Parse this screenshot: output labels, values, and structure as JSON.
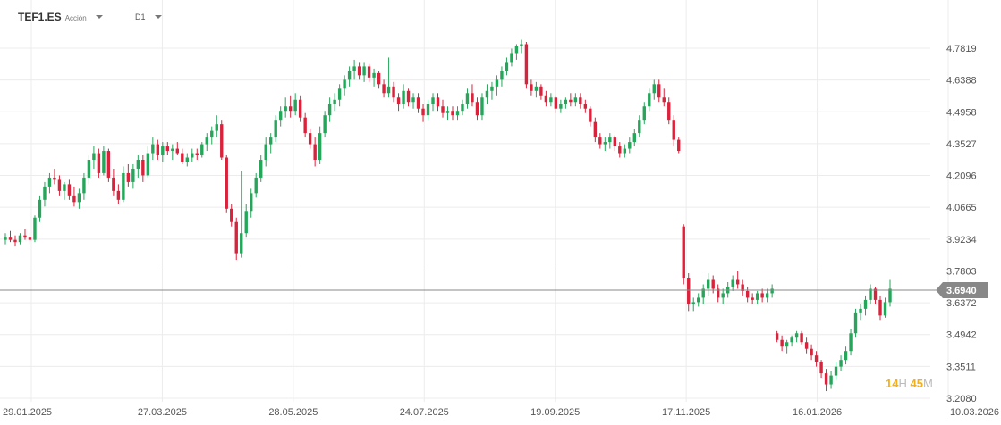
{
  "header": {
    "symbol": "TEF1.ES",
    "asset_type": "Acción",
    "timeframe": "D1"
  },
  "countdown": {
    "hours": "14",
    "hours_unit": "H",
    "minutes": "45",
    "minutes_unit": "M"
  },
  "colors": {
    "up": "#26a65b",
    "down": "#d9233c",
    "price_line": "#888888",
    "price_label_bg": "#888888",
    "grid": "#ececec"
  },
  "chart_data": {
    "type": "candlestick",
    "y_ticks": [
      "4.7819",
      "4.6388",
      "4.4958",
      "4.3527",
      "4.2096",
      "4.0665",
      "3.9234",
      "3.7803",
      "3.6372",
      "3.4942",
      "3.3511",
      "3.2080"
    ],
    "x_ticks": [
      "29.01.2025",
      "27.03.2025",
      "28.05.2025",
      "24.07.2025",
      "19.09.2025",
      "17.11.2025",
      "16.01.2026",
      "10.03.2026"
    ],
    "ylim": [
      3.208,
      4.7819
    ],
    "current_price": "3.6940",
    "grid": true,
    "points": [
      [
        3.92,
        3.95,
        3.9,
        3.93
      ],
      [
        3.93,
        3.96,
        3.91,
        3.92
      ],
      [
        3.92,
        3.94,
        3.89,
        3.91
      ],
      [
        3.91,
        3.95,
        3.9,
        3.94
      ],
      [
        3.94,
        3.97,
        3.92,
        3.93
      ],
      [
        3.93,
        3.95,
        3.9,
        3.92
      ],
      [
        3.92,
        4.03,
        3.91,
        4.02
      ],
      [
        4.02,
        4.12,
        4.0,
        4.1
      ],
      [
        4.1,
        4.18,
        4.07,
        4.16
      ],
      [
        4.16,
        4.22,
        4.13,
        4.2
      ],
      [
        4.2,
        4.24,
        4.17,
        4.19
      ],
      [
        4.19,
        4.21,
        4.12,
        4.14
      ],
      [
        4.14,
        4.18,
        4.1,
        4.17
      ],
      [
        4.17,
        4.19,
        4.1,
        4.12
      ],
      [
        4.12,
        4.16,
        4.07,
        4.09
      ],
      [
        4.09,
        4.15,
        4.06,
        4.13
      ],
      [
        4.13,
        4.22,
        4.1,
        4.2
      ],
      [
        4.2,
        4.3,
        4.17,
        4.28
      ],
      [
        4.28,
        4.34,
        4.24,
        4.31
      ],
      [
        4.31,
        4.33,
        4.2,
        4.22
      ],
      [
        4.22,
        4.34,
        4.21,
        4.32
      ],
      [
        4.32,
        4.33,
        4.18,
        4.2
      ],
      [
        4.2,
        4.24,
        4.12,
        4.14
      ],
      [
        4.14,
        4.17,
        4.08,
        4.1
      ],
      [
        4.1,
        4.25,
        4.09,
        4.22
      ],
      [
        4.22,
        4.26,
        4.16,
        4.18
      ],
      [
        4.18,
        4.26,
        4.15,
        4.24
      ],
      [
        4.24,
        4.3,
        4.2,
        4.28
      ],
      [
        4.28,
        4.3,
        4.18,
        4.21
      ],
      [
        4.21,
        4.34,
        4.2,
        4.31
      ],
      [
        4.31,
        4.38,
        4.28,
        4.35
      ],
      [
        4.35,
        4.37,
        4.28,
        4.3
      ],
      [
        4.3,
        4.36,
        4.27,
        4.34
      ],
      [
        4.34,
        4.36,
        4.3,
        4.32
      ],
      [
        4.32,
        4.35,
        4.28,
        4.33
      ],
      [
        4.33,
        4.36,
        4.3,
        4.31
      ],
      [
        4.31,
        4.33,
        4.26,
        4.27
      ],
      [
        4.27,
        4.31,
        4.25,
        4.29
      ],
      [
        4.29,
        4.33,
        4.27,
        4.31
      ],
      [
        4.31,
        4.33,
        4.28,
        4.3
      ],
      [
        4.3,
        4.36,
        4.29,
        4.35
      ],
      [
        4.35,
        4.4,
        4.32,
        4.38
      ],
      [
        4.38,
        4.43,
        4.35,
        4.41
      ],
      [
        4.41,
        4.48,
        4.38,
        4.44
      ],
      [
        4.44,
        4.46,
        4.28,
        4.29
      ],
      [
        4.29,
        4.3,
        4.04,
        4.06
      ],
      [
        4.06,
        4.08,
        3.98,
        4.0
      ],
      [
        4.0,
        4.02,
        3.83,
        3.86
      ],
      [
        3.86,
        4.23,
        3.84,
        3.95
      ],
      [
        3.95,
        4.08,
        3.93,
        4.05
      ],
      [
        4.05,
        4.15,
        4.02,
        4.13
      ],
      [
        4.13,
        4.22,
        4.11,
        4.2
      ],
      [
        4.2,
        4.3,
        4.18,
        4.28
      ],
      [
        4.28,
        4.38,
        4.25,
        4.35
      ],
      [
        4.35,
        4.4,
        4.31,
        4.38
      ],
      [
        4.38,
        4.48,
        4.36,
        4.46
      ],
      [
        4.46,
        4.52,
        4.43,
        4.5
      ],
      [
        4.5,
        4.56,
        4.47,
        4.52
      ],
      [
        4.52,
        4.57,
        4.47,
        4.5
      ],
      [
        4.5,
        4.58,
        4.48,
        4.55
      ],
      [
        4.55,
        4.57,
        4.45,
        4.47
      ],
      [
        4.47,
        4.49,
        4.38,
        4.4
      ],
      [
        4.4,
        4.42,
        4.33,
        4.35
      ],
      [
        4.35,
        4.38,
        4.25,
        4.28
      ],
      [
        4.28,
        4.43,
        4.26,
        4.4
      ],
      [
        4.4,
        4.5,
        4.38,
        4.48
      ],
      [
        4.48,
        4.56,
        4.45,
        4.53
      ],
      [
        4.53,
        4.58,
        4.5,
        4.55
      ],
      [
        4.55,
        4.62,
        4.52,
        4.6
      ],
      [
        4.6,
        4.66,
        4.57,
        4.64
      ],
      [
        4.64,
        4.7,
        4.61,
        4.68
      ],
      [
        4.68,
        4.73,
        4.64,
        4.7
      ],
      [
        4.7,
        4.72,
        4.64,
        4.66
      ],
      [
        4.66,
        4.72,
        4.63,
        4.7
      ],
      [
        4.7,
        4.71,
        4.63,
        4.65
      ],
      [
        4.65,
        4.69,
        4.61,
        4.67
      ],
      [
        4.67,
        4.68,
        4.6,
        4.62
      ],
      [
        4.62,
        4.64,
        4.56,
        4.58
      ],
      [
        4.58,
        4.74,
        4.56,
        4.61
      ],
      [
        4.61,
        4.63,
        4.54,
        4.56
      ],
      [
        4.56,
        4.58,
        4.5,
        4.53
      ],
      [
        4.53,
        4.62,
        4.51,
        4.59
      ],
      [
        4.59,
        4.6,
        4.52,
        4.54
      ],
      [
        4.54,
        4.58,
        4.51,
        4.56
      ],
      [
        4.56,
        4.58,
        4.49,
        4.51
      ],
      [
        4.51,
        4.53,
        4.45,
        4.48
      ],
      [
        4.48,
        4.55,
        4.46,
        4.53
      ],
      [
        4.53,
        4.58,
        4.5,
        4.56
      ],
      [
        4.56,
        4.58,
        4.5,
        4.52
      ],
      [
        4.52,
        4.55,
        4.47,
        4.49
      ],
      [
        4.49,
        4.52,
        4.46,
        4.5
      ],
      [
        4.5,
        4.52,
        4.46,
        4.48
      ],
      [
        4.48,
        4.52,
        4.46,
        4.5
      ],
      [
        4.5,
        4.55,
        4.48,
        4.53
      ],
      [
        4.53,
        4.6,
        4.51,
        4.58
      ],
      [
        4.58,
        4.62,
        4.52,
        4.54
      ],
      [
        4.54,
        4.56,
        4.46,
        4.48
      ],
      [
        4.48,
        4.58,
        4.46,
        4.56
      ],
      [
        4.56,
        4.62,
        4.53,
        4.59
      ],
      [
        4.59,
        4.63,
        4.55,
        4.61
      ],
      [
        4.61,
        4.66,
        4.57,
        4.64
      ],
      [
        4.64,
        4.7,
        4.61,
        4.68
      ],
      [
        4.68,
        4.74,
        4.66,
        4.72
      ],
      [
        4.72,
        4.78,
        4.7,
        4.76
      ],
      [
        4.76,
        4.8,
        4.73,
        4.79
      ],
      [
        4.79,
        4.82,
        4.76,
        4.8
      ],
      [
        4.8,
        4.81,
        4.6,
        4.62
      ],
      [
        4.62,
        4.64,
        4.57,
        4.59
      ],
      [
        4.59,
        4.63,
        4.56,
        4.61
      ],
      [
        4.61,
        4.62,
        4.55,
        4.57
      ],
      [
        4.57,
        4.59,
        4.52,
        4.54
      ],
      [
        4.54,
        4.58,
        4.52,
        4.56
      ],
      [
        4.56,
        4.57,
        4.49,
        4.51
      ],
      [
        4.51,
        4.55,
        4.49,
        4.53
      ],
      [
        4.53,
        4.56,
        4.51,
        4.55
      ],
      [
        4.55,
        4.58,
        4.52,
        4.54
      ],
      [
        4.54,
        4.58,
        4.52,
        4.56
      ],
      [
        4.56,
        4.58,
        4.51,
        4.53
      ],
      [
        4.53,
        4.55,
        4.49,
        4.51
      ],
      [
        4.51,
        4.52,
        4.43,
        4.45
      ],
      [
        4.45,
        4.47,
        4.36,
        4.38
      ],
      [
        4.38,
        4.4,
        4.33,
        4.35
      ],
      [
        4.35,
        4.38,
        4.32,
        4.36
      ],
      [
        4.36,
        4.4,
        4.33,
        4.38
      ],
      [
        4.38,
        4.39,
        4.32,
        4.34
      ],
      [
        4.34,
        4.36,
        4.29,
        4.31
      ],
      [
        4.31,
        4.35,
        4.29,
        4.33
      ],
      [
        4.33,
        4.38,
        4.31,
        4.36
      ],
      [
        4.36,
        4.42,
        4.34,
        4.4
      ],
      [
        4.4,
        4.48,
        4.38,
        4.46
      ],
      [
        4.46,
        4.54,
        4.44,
        4.52
      ],
      [
        4.52,
        4.6,
        4.5,
        4.58
      ],
      [
        4.58,
        4.64,
        4.55,
        4.62
      ],
      [
        4.62,
        4.64,
        4.54,
        4.56
      ],
      [
        4.56,
        4.6,
        4.52,
        4.54
      ],
      [
        4.54,
        4.56,
        4.44,
        4.46
      ],
      [
        4.46,
        4.48,
        4.34,
        4.37
      ],
      [
        4.37,
        4.38,
        4.31,
        4.32
      ],
      [
        3.98,
        3.99,
        3.72,
        3.75
      ],
      [
        3.75,
        3.77,
        3.6,
        3.63
      ],
      [
        3.63,
        3.66,
        3.6,
        3.64
      ],
      [
        3.64,
        3.68,
        3.62,
        3.66
      ],
      [
        3.66,
        3.72,
        3.63,
        3.7
      ],
      [
        3.7,
        3.77,
        3.67,
        3.74
      ],
      [
        3.74,
        3.76,
        3.68,
        3.7
      ],
      [
        3.7,
        3.72,
        3.64,
        3.66
      ],
      [
        3.66,
        3.7,
        3.63,
        3.68
      ],
      [
        3.68,
        3.73,
        3.66,
        3.71
      ],
      [
        3.71,
        3.76,
        3.69,
        3.74
      ],
      [
        3.74,
        3.78,
        3.7,
        3.72
      ],
      [
        3.72,
        3.74,
        3.67,
        3.69
      ],
      [
        3.69,
        3.71,
        3.64,
        3.66
      ],
      [
        3.66,
        3.68,
        3.63,
        3.65
      ],
      [
        3.65,
        3.69,
        3.63,
        3.68
      ],
      [
        3.68,
        3.7,
        3.64,
        3.66
      ],
      [
        3.66,
        3.7,
        3.64,
        3.68
      ],
      [
        3.68,
        3.72,
        3.66,
        3.7
      ],
      [
        3.5,
        3.51,
        3.46,
        3.47
      ],
      [
        3.47,
        3.49,
        3.42,
        3.44
      ],
      [
        3.44,
        3.47,
        3.41,
        3.46
      ],
      [
        3.46,
        3.49,
        3.44,
        3.48
      ],
      [
        3.48,
        3.51,
        3.46,
        3.5
      ],
      [
        3.5,
        3.51,
        3.45,
        3.46
      ],
      [
        3.46,
        3.48,
        3.41,
        3.43
      ],
      [
        3.43,
        3.45,
        3.38,
        3.4
      ],
      [
        3.4,
        3.42,
        3.35,
        3.37
      ],
      [
        3.37,
        3.38,
        3.3,
        3.32
      ],
      [
        3.32,
        3.34,
        3.24,
        3.27
      ],
      [
        3.27,
        3.33,
        3.25,
        3.31
      ],
      [
        3.31,
        3.37,
        3.29,
        3.35
      ],
      [
        3.35,
        3.4,
        3.33,
        3.38
      ],
      [
        3.38,
        3.44,
        3.36,
        3.42
      ],
      [
        3.42,
        3.52,
        3.4,
        3.5
      ],
      [
        3.5,
        3.61,
        3.48,
        3.59
      ],
      [
        3.59,
        3.63,
        3.56,
        3.61
      ],
      [
        3.61,
        3.67,
        3.58,
        3.65
      ],
      [
        3.65,
        3.72,
        3.63,
        3.7
      ],
      [
        3.7,
        3.71,
        3.63,
        3.65
      ],
      [
        3.65,
        3.67,
        3.56,
        3.58
      ],
      [
        3.58,
        3.66,
        3.57,
        3.64
      ],
      [
        3.64,
        3.74,
        3.62,
        3.7
      ]
    ]
  }
}
